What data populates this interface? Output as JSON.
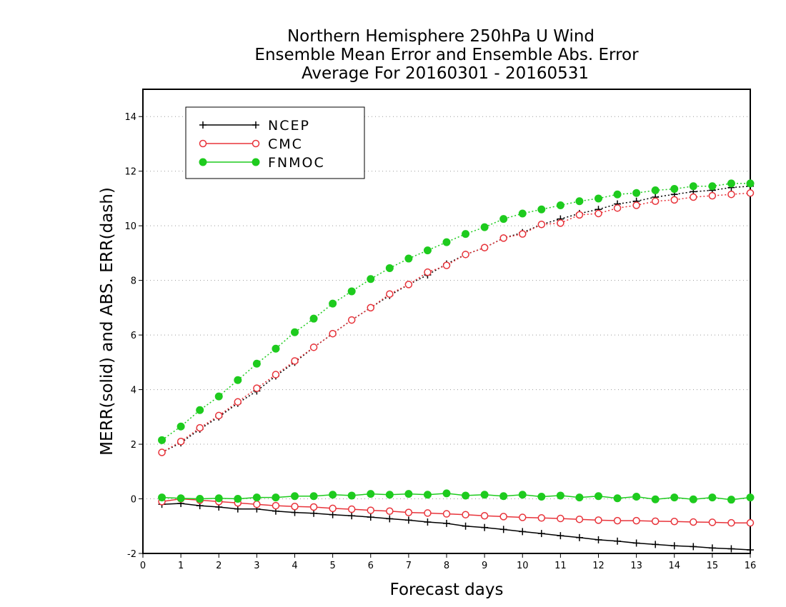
{
  "chart_data": {
    "type": "line",
    "title": [
      "Northern Hemisphere 250hPa U Wind",
      "Ensemble Mean Error and Ensemble Abs. Error",
      "Average For 20160301 - 20160531"
    ],
    "xlabel": "Forecast days",
    "ylabel": "MERR(solid) and ABS. ERR(dash)",
    "xlim": [
      0,
      16
    ],
    "ylim": [
      -2,
      15
    ],
    "xticks": [
      0,
      1,
      2,
      3,
      4,
      5,
      6,
      7,
      8,
      9,
      10,
      11,
      12,
      13,
      14,
      15,
      16
    ],
    "yticks": [
      -2,
      0,
      2,
      4,
      6,
      8,
      10,
      12,
      14
    ],
    "grid": "dotted horizontal",
    "legend_position": "top-left",
    "x": [
      0.5,
      1,
      1.5,
      2,
      2.5,
      3,
      3.5,
      4,
      4.5,
      5,
      5.5,
      6,
      6.5,
      7,
      7.5,
      8,
      8.5,
      9,
      9.5,
      10,
      10.5,
      11,
      11.5,
      12,
      12.5,
      13,
      13.5,
      14,
      14.5,
      15,
      15.5,
      16
    ],
    "series": [
      {
        "name": "NCEP",
        "color": "#000000",
        "marker": "plus",
        "merr": [
          -0.2,
          -0.17,
          -0.25,
          -0.3,
          -0.37,
          -0.37,
          -0.45,
          -0.5,
          -0.53,
          -0.58,
          -0.62,
          -0.67,
          -0.73,
          -0.78,
          -0.85,
          -0.9,
          -1.0,
          -1.05,
          -1.12,
          -1.2,
          -1.27,
          -1.35,
          -1.42,
          -1.5,
          -1.55,
          -1.62,
          -1.67,
          -1.72,
          -1.75,
          -1.8,
          -1.83,
          -1.87
        ],
        "abs_err": [
          1.7,
          2.05,
          2.55,
          3.0,
          3.5,
          3.95,
          4.5,
          5.0,
          5.55,
          6.05,
          6.55,
          7.0,
          7.45,
          7.85,
          8.2,
          8.6,
          8.95,
          9.2,
          9.55,
          9.75,
          10.05,
          10.25,
          10.45,
          10.6,
          10.8,
          10.9,
          11.05,
          11.15,
          11.25,
          11.3,
          11.4,
          11.45
        ]
      },
      {
        "name": "CMC",
        "color": "#e8333a",
        "marker": "open-circle",
        "merr": [
          -0.1,
          0.0,
          -0.05,
          -0.1,
          -0.15,
          -0.2,
          -0.25,
          -0.28,
          -0.3,
          -0.35,
          -0.38,
          -0.42,
          -0.45,
          -0.5,
          -0.52,
          -0.55,
          -0.58,
          -0.62,
          -0.65,
          -0.68,
          -0.7,
          -0.72,
          -0.75,
          -0.78,
          -0.8,
          -0.8,
          -0.82,
          -0.83,
          -0.85,
          -0.86,
          -0.88,
          -0.88
        ],
        "abs_err": [
          1.7,
          2.1,
          2.6,
          3.05,
          3.55,
          4.05,
          4.55,
          5.05,
          5.55,
          6.05,
          6.55,
          7.0,
          7.5,
          7.85,
          8.3,
          8.55,
          8.95,
          9.2,
          9.55,
          9.7,
          10.05,
          10.1,
          10.4,
          10.45,
          10.65,
          10.75,
          10.9,
          10.95,
          11.05,
          11.1,
          11.15,
          11.2
        ]
      },
      {
        "name": "FNMOC",
        "color": "#1ecb1e",
        "marker": "filled-circle",
        "merr": [
          0.05,
          0.02,
          0.0,
          0.02,
          0.0,
          0.05,
          0.05,
          0.1,
          0.1,
          0.15,
          0.12,
          0.18,
          0.15,
          0.18,
          0.15,
          0.2,
          0.12,
          0.15,
          0.1,
          0.15,
          0.08,
          0.12,
          0.05,
          0.1,
          0.02,
          0.08,
          -0.02,
          0.05,
          -0.02,
          0.05,
          -0.03,
          0.05
        ],
        "abs_err": [
          2.15,
          2.65,
          3.25,
          3.75,
          4.35,
          4.95,
          5.5,
          6.1,
          6.6,
          7.15,
          7.6,
          8.05,
          8.45,
          8.8,
          9.1,
          9.4,
          9.7,
          9.95,
          10.25,
          10.45,
          10.6,
          10.75,
          10.9,
          11.0,
          11.15,
          11.2,
          11.3,
          11.35,
          11.45,
          11.45,
          11.55,
          11.55
        ]
      }
    ]
  }
}
